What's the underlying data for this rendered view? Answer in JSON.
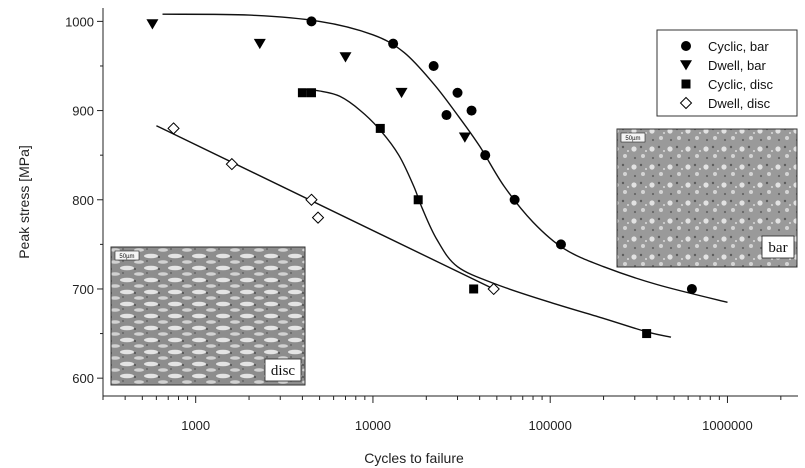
{
  "chart_data": {
    "type": "scatter",
    "xlabel": "Cycles to failure",
    "ylabel": "Peak stress [MPa]",
    "x_scale": "log",
    "xlim": [
      300,
      2500000
    ],
    "ylim": [
      580,
      1015
    ],
    "x_ticks": [
      1000,
      10000,
      100000,
      1000000
    ],
    "x_tick_labels": [
      "1000",
      "10000",
      "100000",
      "1000000"
    ],
    "y_ticks": [
      600,
      700,
      800,
      900,
      1000
    ],
    "y_tick_labels": [
      "600",
      "700",
      "800",
      "900",
      "1000"
    ],
    "legend_position": "top-right",
    "series": [
      {
        "name": "Cyclic, bar",
        "marker": "filled-circle",
        "points": [
          [
            4500,
            1000
          ],
          [
            13000,
            975
          ],
          [
            22000,
            950
          ],
          [
            30000,
            920
          ],
          [
            26000,
            895
          ],
          [
            36000,
            900
          ],
          [
            43000,
            850
          ],
          [
            63000,
            800
          ],
          [
            115000,
            750
          ],
          [
            630000,
            700
          ]
        ]
      },
      {
        "name": "Dwell, bar",
        "marker": "filled-triangle-down",
        "points": [
          [
            570,
            997
          ],
          [
            2300,
            975
          ],
          [
            7000,
            960
          ],
          [
            14500,
            920
          ],
          [
            33000,
            870
          ]
        ]
      },
      {
        "name": "Cyclic, disc",
        "marker": "filled-square",
        "points": [
          [
            4000,
            920
          ],
          [
            4500,
            920
          ],
          [
            11000,
            880
          ],
          [
            18000,
            800
          ],
          [
            37000,
            700
          ],
          [
            350000,
            650
          ]
        ]
      },
      {
        "name": "Dwell, disc",
        "marker": "open-diamond",
        "points": [
          [
            750,
            880
          ],
          [
            1600,
            840
          ],
          [
            4500,
            800
          ],
          [
            4900,
            780
          ],
          [
            48000,
            700
          ]
        ]
      }
    ],
    "fit_curves": [
      {
        "series": "bar",
        "points": [
          [
            650,
            1008
          ],
          [
            2000,
            1007
          ],
          [
            5000,
            1000
          ],
          [
            10000,
            985
          ],
          [
            15000,
            965
          ],
          [
            22000,
            930
          ],
          [
            30000,
            895
          ],
          [
            40000,
            860
          ],
          [
            55000,
            815
          ],
          [
            80000,
            775
          ],
          [
            120000,
            745
          ],
          [
            200000,
            725
          ],
          [
            400000,
            705
          ],
          [
            1000000,
            685
          ]
        ]
      },
      {
        "series": "cyclic-disc",
        "points": [
          [
            4000,
            924
          ],
          [
            5000,
            922
          ],
          [
            6500,
            916
          ],
          [
            8500,
            900
          ],
          [
            11000,
            878
          ],
          [
            14000,
            850
          ],
          [
            17000,
            815
          ],
          [
            19000,
            790
          ],
          [
            23000,
            755
          ],
          [
            30000,
            725
          ],
          [
            50000,
            705
          ],
          [
            100000,
            685
          ],
          [
            200000,
            667
          ],
          [
            350000,
            652
          ],
          [
            480000,
            646
          ]
        ]
      },
      {
        "series": "dwell-disc",
        "points": [
          [
            600,
            883
          ],
          [
            48000,
            700
          ]
        ]
      }
    ],
    "insets": [
      {
        "label": "disc",
        "scale_text": "50µm"
      },
      {
        "label": "bar",
        "scale_text": "50µm"
      }
    ]
  }
}
